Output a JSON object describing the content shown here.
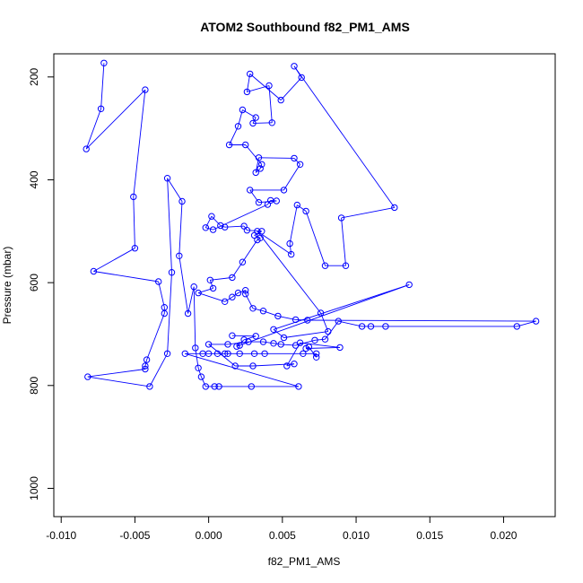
{
  "chart_data": {
    "type": "line",
    "title": "ATOM2 Southbound f82_PM1_AMS",
    "xlabel": "f82_PM1_AMS",
    "ylabel": "Pressure (mbar)",
    "xlim": [
      -0.0105,
      0.0235
    ],
    "ylim": [
      1055,
      155
    ],
    "y_reversed": true,
    "x_ticks": [
      -0.01,
      -0.005,
      0.0,
      0.005,
      0.01,
      0.015,
      0.02
    ],
    "x_tick_labels": [
      "-0.010",
      "-0.005",
      "0.000",
      "0.005",
      "0.010",
      "0.015",
      "0.020"
    ],
    "y_ticks": [
      200,
      400,
      600,
      800,
      1000
    ],
    "y_tick_labels": [
      "200",
      "400",
      "600",
      "800",
      "1000"
    ],
    "grid": false,
    "legend": "none",
    "series_color": "#0000ff",
    "marker": "open-circle",
    "points": [
      [
        -0.0071,
        173
      ],
      [
        -0.0073,
        262
      ],
      [
        -0.0083,
        340
      ],
      [
        -0.0043,
        225
      ],
      [
        -0.0051,
        433
      ],
      [
        -0.005,
        533
      ],
      [
        -0.0078,
        578
      ],
      [
        -0.0034,
        598
      ],
      [
        -0.003,
        648
      ],
      [
        -0.003,
        660
      ],
      [
        -0.0042,
        750
      ],
      [
        -0.0043,
        762
      ],
      [
        -0.0043,
        768
      ],
      [
        -0.0082,
        783
      ],
      [
        -0.004,
        802
      ],
      [
        -0.0028,
        738
      ],
      [
        -0.0025,
        580
      ],
      [
        -0.0028,
        397
      ],
      [
        -0.0018,
        442
      ],
      [
        -0.002,
        548
      ],
      [
        -0.0014,
        660
      ],
      [
        -0.001,
        608
      ],
      [
        -0.0009,
        727
      ],
      [
        -0.0007,
        766
      ],
      [
        -0.0005,
        783
      ],
      [
        -0.0002,
        802
      ],
      [
        0.0004,
        802
      ],
      [
        0.0007,
        802
      ],
      [
        0.0029,
        802
      ],
      [
        0.0061,
        802
      ],
      [
        -0.0016,
        738
      ],
      [
        -0.0004,
        738
      ],
      [
        0.0,
        738
      ],
      [
        0.0006,
        738
      ],
      [
        0.0011,
        738
      ],
      [
        0.0013,
        738
      ],
      [
        0.0021,
        738
      ],
      [
        0.0031,
        738
      ],
      [
        0.0038,
        738
      ],
      [
        0.0064,
        738
      ],
      [
        0.0073,
        738
      ],
      [
        0.0073,
        745
      ],
      [
        0.0068,
        725
      ],
      [
        0.0066,
        728
      ],
      [
        0.0089,
        726
      ],
      [
        0.0062,
        717
      ],
      [
        0.0053,
        762
      ],
      [
        0.0058,
        758
      ],
      [
        0.003,
        762
      ],
      [
        0.0018,
        762
      ],
      [
        0.0,
        720
      ],
      [
        0.0013,
        720
      ],
      [
        0.0027,
        715
      ],
      [
        0.0037,
        715
      ],
      [
        0.0044,
        718
      ],
      [
        0.0049,
        720
      ],
      [
        0.0059,
        722
      ],
      [
        0.0072,
        712
      ],
      [
        0.0079,
        710
      ],
      [
        0.0088,
        675
      ],
      [
        0.0104,
        685
      ],
      [
        0.011,
        685
      ],
      [
        0.012,
        685
      ],
      [
        0.0209,
        685
      ],
      [
        0.0222,
        675
      ],
      [
        0.0067,
        673
      ],
      [
        0.0059,
        672
      ],
      [
        0.0047,
        665
      ],
      [
        0.0037,
        655
      ],
      [
        0.003,
        650
      ],
      [
        0.0025,
        622
      ],
      [
        0.0025,
        615
      ],
      [
        0.002,
        620
      ],
      [
        0.0016,
        628
      ],
      [
        0.0011,
        637
      ],
      [
        -0.0007,
        620
      ],
      [
        0.0003,
        611
      ],
      [
        0.0001,
        595
      ],
      [
        0.0016,
        590
      ],
      [
        0.0023,
        560
      ],
      [
        0.0033,
        517
      ],
      [
        0.0035,
        513
      ],
      [
        0.0031,
        508
      ],
      [
        0.0036,
        500
      ],
      [
        0.0026,
        498
      ],
      [
        0.0024,
        490
      ],
      [
        0.0011,
        492
      ],
      [
        0.0008,
        489
      ],
      [
        0.0002,
        471
      ],
      [
        -0.0002,
        493
      ],
      [
        0.0003,
        497
      ],
      [
        0.004,
        448
      ],
      [
        0.0042,
        440
      ],
      [
        0.0046,
        441
      ],
      [
        0.0034,
        444
      ],
      [
        0.0028,
        420
      ],
      [
        0.0051,
        420
      ],
      [
        0.0062,
        370
      ],
      [
        0.0058,
        358
      ],
      [
        0.0034,
        357
      ],
      [
        0.0032,
        386
      ],
      [
        0.0035,
        378
      ],
      [
        0.0036,
        370
      ],
      [
        0.0025,
        332
      ],
      [
        0.0014,
        332
      ],
      [
        0.002,
        296
      ],
      [
        0.0023,
        264
      ],
      [
        0.0032,
        279
      ],
      [
        0.003,
        290
      ],
      [
        0.0043,
        289
      ],
      [
        0.0041,
        217
      ],
      [
        0.0026,
        229
      ],
      [
        0.0028,
        194
      ],
      [
        0.0049,
        245
      ],
      [
        0.0063,
        201
      ],
      [
        0.0058,
        179
      ],
      [
        0.0126,
        454
      ],
      [
        0.009,
        474
      ],
      [
        0.0093,
        567
      ],
      [
        0.0079,
        567
      ],
      [
        0.0066,
        461
      ],
      [
        0.006,
        449
      ],
      [
        0.0055,
        524
      ],
      [
        0.0056,
        545
      ],
      [
        0.0033,
        500
      ],
      [
        0.0076,
        659
      ],
      [
        0.0081,
        695
      ],
      [
        0.0051,
        707
      ],
      [
        0.0044,
        691
      ],
      [
        0.0136,
        604
      ],
      [
        0.0021,
        722
      ],
      [
        0.0019,
        724
      ],
      [
        0.0024,
        711
      ],
      [
        0.0032,
        704
      ],
      [
        0.0016,
        703
      ]
    ]
  }
}
